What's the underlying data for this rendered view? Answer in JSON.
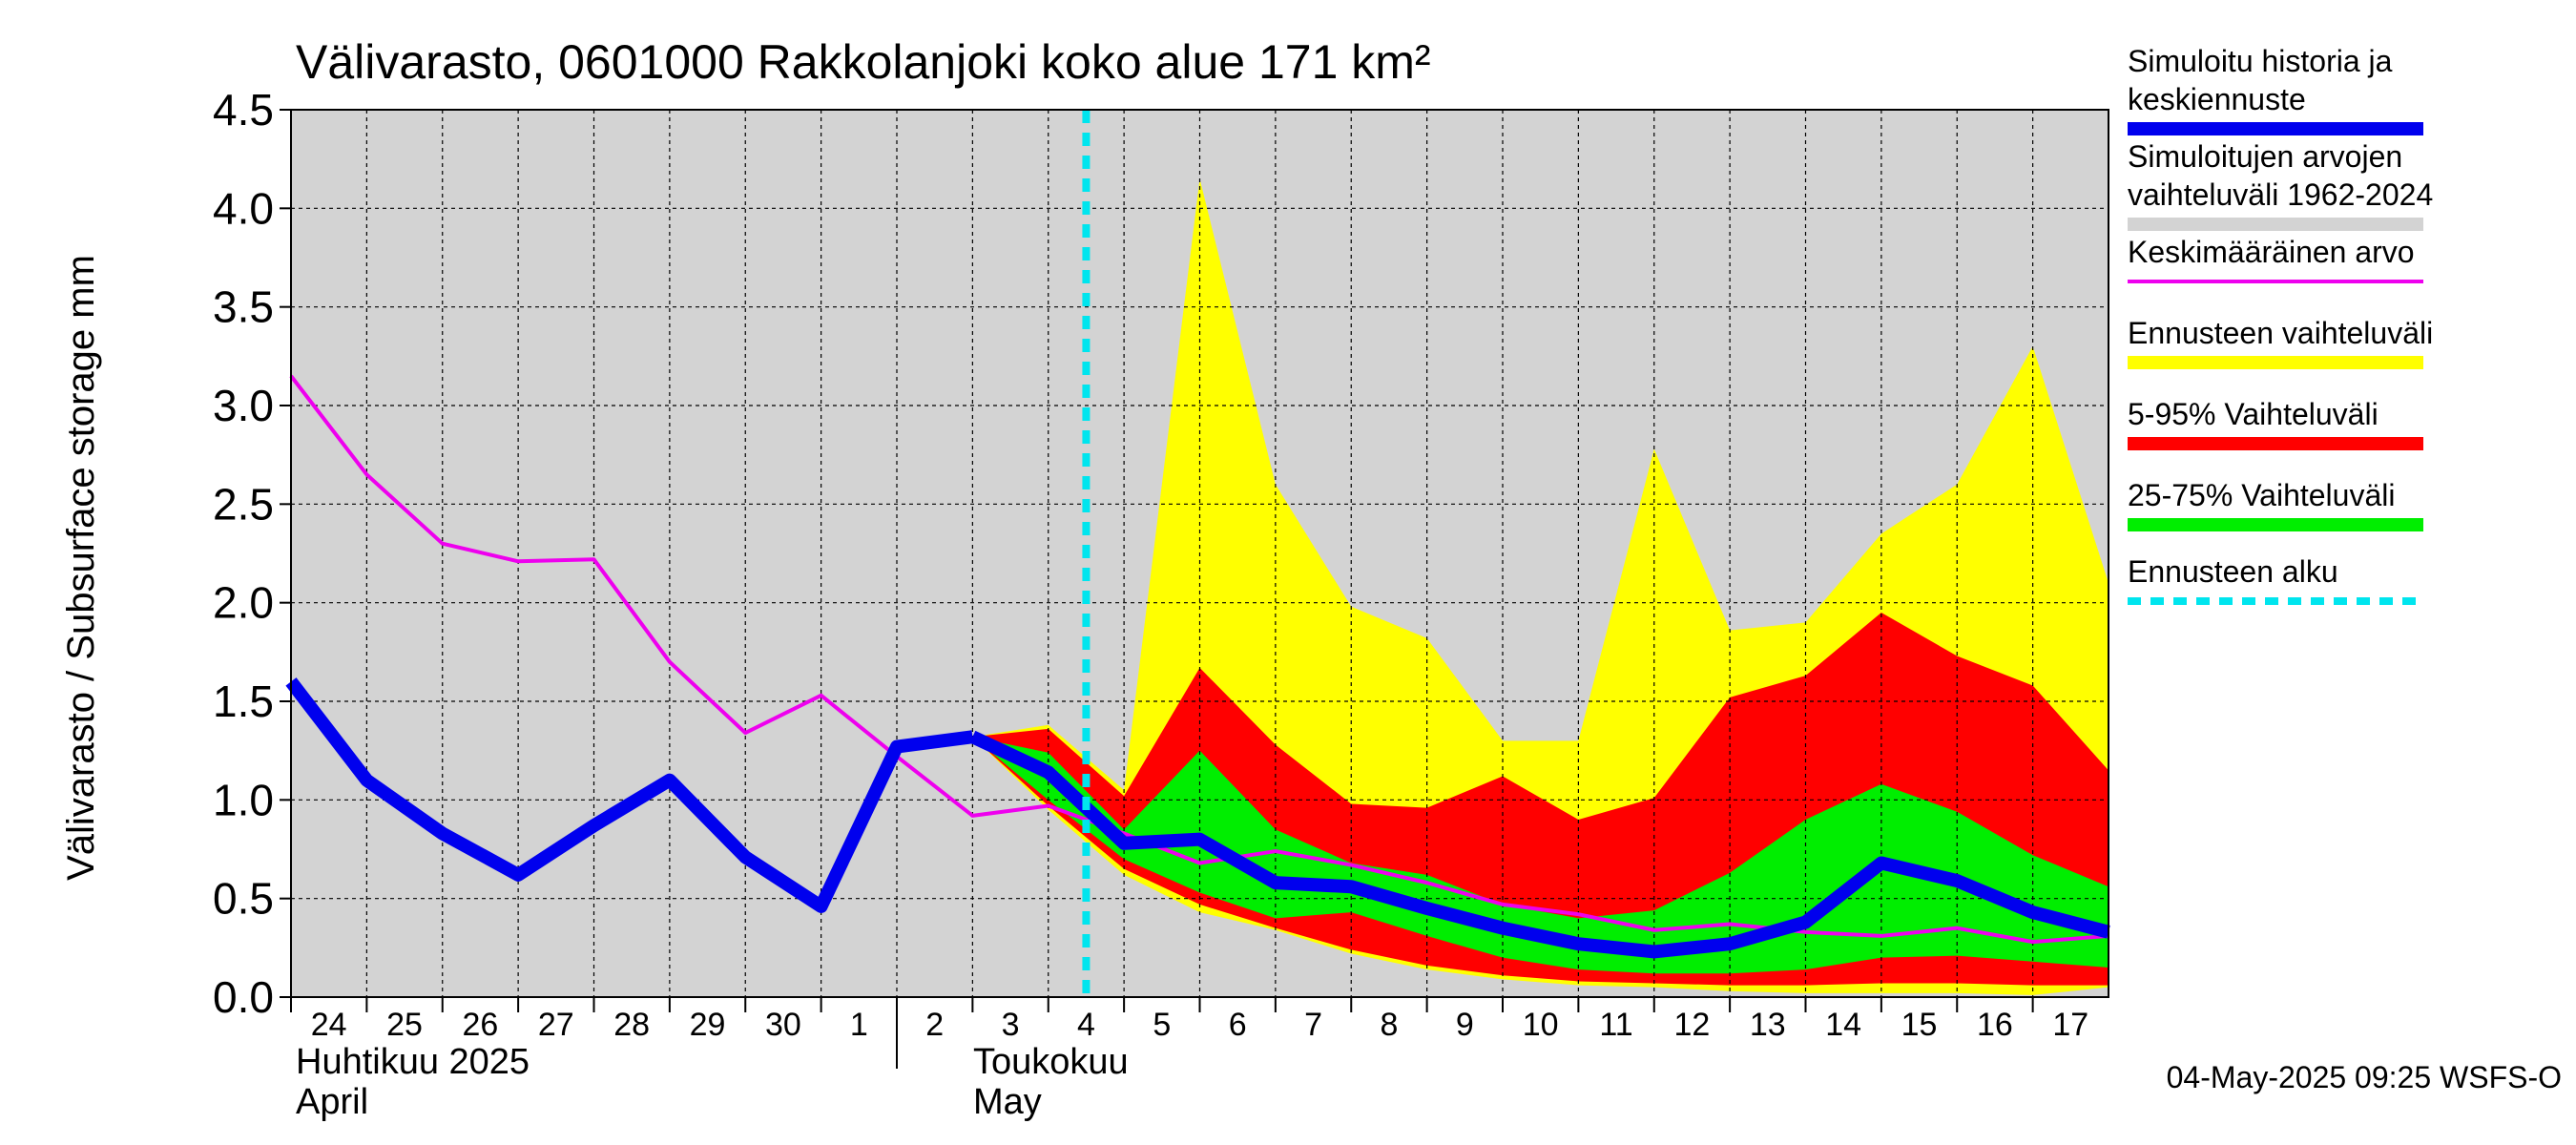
{
  "chart_data": {
    "type": "area",
    "title": "Välivarasto, 0601000 Rakkolanjoki koko alue 171 km²",
    "ylabel": "Välivarasto / Subsurface storage  mm",
    "ylim": [
      0,
      4.5
    ],
    "yticks": [
      "0.0",
      "0.5",
      "1.0",
      "1.5",
      "2.0",
      "2.5",
      "3.0",
      "3.5",
      "4.0",
      "4.5"
    ],
    "xlim": [
      -0.5,
      23.5
    ],
    "x_day_labels": [
      "24",
      "25",
      "26",
      "27",
      "28",
      "29",
      "30",
      "1",
      "2",
      "3",
      "4",
      "5",
      "6",
      "7",
      "8",
      "9",
      "10",
      "11",
      "12",
      "13",
      "14",
      "15",
      "16",
      "17"
    ],
    "month_labels": [
      {
        "fi": "Huhtikuu  2025",
        "en": "April",
        "x": 0
      },
      {
        "fi": "Toukokuu",
        "en": "May",
        "x": 8
      }
    ],
    "forecast_start_x": 10.0,
    "grid": true,
    "legend_position": "right",
    "legend": [
      {
        "label": "Simuloitu historia ja keskiennuste",
        "color": "#0000ee",
        "style": "thick"
      },
      {
        "label": "Simuloitujen arvojen vaihteluväli 1962-2024",
        "color": "#d3d3d3",
        "style": "band"
      },
      {
        "label": "Keskimääräinen arvo",
        "color": "#ee00ee",
        "style": "line"
      },
      {
        "label": "Ennusteen vaihteluväli",
        "color": "#ffff00",
        "style": "band"
      },
      {
        "label": "5-95% Vaihteluväli",
        "color": "#ff0000",
        "style": "band"
      },
      {
        "label": "25-75% Vaihteluväli",
        "color": "#00ee00",
        "style": "band"
      },
      {
        "label": "Ennusteen alku",
        "color": "#00e5ee",
        "style": "dashed"
      }
    ],
    "timestamp": "04-May-2025 09:25 WSFS-O",
    "series": {
      "simulated_history": {
        "x": [
          -0.5,
          0.5,
          1.5,
          2.5,
          3.5,
          4.5,
          5.5,
          6.5,
          7.5,
          8.5
        ],
        "values": [
          1.6,
          1.1,
          0.83,
          0.62,
          0.87,
          1.1,
          0.71,
          0.46,
          1.27,
          1.32
        ]
      },
      "forecast_median": {
        "x": [
          8.5,
          9.5,
          10.5,
          11.5,
          12.5,
          13.5,
          14.5,
          15.5,
          16.5,
          17.5,
          18.5,
          19.5,
          20.5,
          21.5,
          22.5,
          23.5
        ],
        "values": [
          1.32,
          1.14,
          0.78,
          0.8,
          0.58,
          0.56,
          0.45,
          0.35,
          0.27,
          0.23,
          0.27,
          0.38,
          0.68,
          0.59,
          0.43,
          0.33
        ]
      },
      "mean": {
        "x": [
          -0.5,
          0.5,
          1.5,
          2.5,
          3.5,
          4.5,
          5.5,
          6.5,
          7.5,
          8.5,
          9.5,
          10.5,
          11.5,
          12.5,
          13.5,
          14.5,
          15.5,
          16.5,
          17.5,
          18.5,
          19.5,
          20.5,
          21.5,
          22.5,
          23.5
        ],
        "values": [
          3.15,
          2.65,
          2.3,
          2.21,
          2.22,
          1.7,
          1.34,
          1.53,
          1.22,
          0.92,
          0.97,
          0.83,
          0.68,
          0.74,
          0.67,
          0.58,
          0.47,
          0.42,
          0.34,
          0.37,
          0.33,
          0.31,
          0.35,
          0.28,
          0.31
        ]
      },
      "forecast_range": {
        "x": [
          8.5,
          9.5,
          10.5,
          11.5,
          12.5,
          13.5,
          14.5,
          15.5,
          16.5,
          17.5,
          18.5,
          19.5,
          20.5,
          21.5,
          22.5,
          23.5
        ],
        "upper": [
          1.32,
          1.38,
          1.05,
          4.15,
          2.6,
          1.98,
          1.82,
          1.3,
          1.3,
          2.78,
          1.86,
          1.9,
          2.35,
          2.6,
          3.3,
          2.1
        ],
        "lower": [
          1.32,
          0.95,
          0.62,
          0.43,
          0.34,
          0.22,
          0.14,
          0.09,
          0.06,
          0.05,
          0.03,
          0.02,
          0.02,
          0.02,
          0.01,
          0.05
        ]
      },
      "p5_95": {
        "x": [
          8.5,
          9.5,
          10.5,
          11.5,
          12.5,
          13.5,
          14.5,
          15.5,
          16.5,
          17.5,
          18.5,
          19.5,
          20.5,
          21.5,
          22.5,
          23.5
        ],
        "upper": [
          1.32,
          1.36,
          1.02,
          1.67,
          1.28,
          0.98,
          0.96,
          1.12,
          0.9,
          1.01,
          1.52,
          1.63,
          1.95,
          1.73,
          1.58,
          1.15
        ],
        "lower": [
          1.32,
          0.97,
          0.65,
          0.47,
          0.35,
          0.24,
          0.16,
          0.11,
          0.08,
          0.07,
          0.06,
          0.06,
          0.07,
          0.07,
          0.06,
          0.06
        ]
      },
      "p25_75": {
        "x": [
          8.5,
          9.5,
          10.5,
          11.5,
          12.5,
          13.5,
          14.5,
          15.5,
          16.5,
          17.5,
          18.5,
          19.5,
          20.5,
          21.5,
          22.5,
          23.5
        ],
        "upper": [
          1.32,
          1.24,
          0.85,
          1.25,
          0.85,
          0.68,
          0.62,
          0.47,
          0.4,
          0.44,
          0.63,
          0.9,
          1.08,
          0.94,
          0.72,
          0.56
        ],
        "lower": [
          1.32,
          1.0,
          0.7,
          0.53,
          0.4,
          0.43,
          0.31,
          0.2,
          0.14,
          0.12,
          0.12,
          0.14,
          0.2,
          0.21,
          0.18,
          0.15
        ]
      }
    }
  }
}
